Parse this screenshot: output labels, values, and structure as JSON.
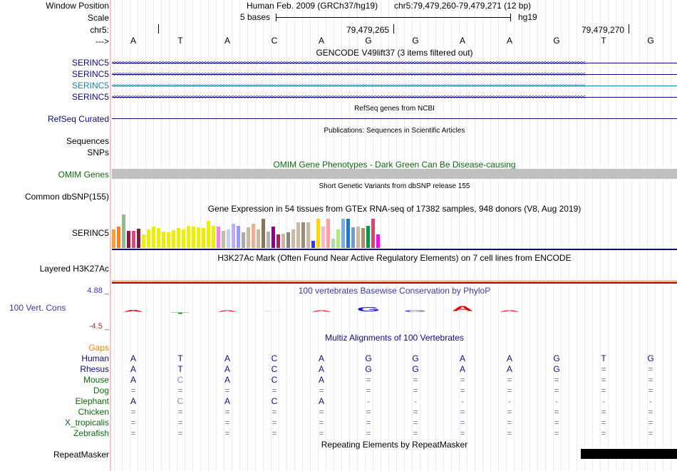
{
  "header": {
    "window_position_label": "Window Position",
    "assembly": "Human Feb. 2009 (GRCh37/hg19)",
    "position": "chr5:79,479,260-79,479,271 (12 bp)",
    "scale_label": "Scale",
    "scale_text": "5 bases",
    "scale_db": "hg19",
    "chrom_label": "chr5:",
    "coord_1": "79,479,265",
    "coord_2": "79,479,270",
    "strand_label": "--->"
  },
  "bases": [
    "A",
    "T",
    "A",
    "C",
    "A",
    "G",
    "G",
    "A",
    "A",
    "G",
    "T",
    "G"
  ],
  "gencode": {
    "title": "GENCODE V49lift37 (3 items filtered out)",
    "rows": [
      {
        "label": "SERINC5",
        "color": "#0c0c78"
      },
      {
        "label": "SERINC5",
        "color": "#0c0c78"
      },
      {
        "label": "SERINC5",
        "color": "#1c7fa8"
      },
      {
        "label": "SERINC5",
        "color": "#0c0c78"
      }
    ],
    "chevrons": "<<<<<<<<<<<<<<<<<<<<<<<<<<<<<<<<<<<<<<<<<<<<<<<<<<<<<<<<<<<<<<<<<<<<<<<<<<<<<<<<<<<<<<<<<<<<<<<<<<<<<<<<<<<<<<<<<<<<<<<<<<<<<<<<<<<<<<<<<<<<<<<<<<<<<<<<<<<<"
  },
  "refseq": {
    "title": "RefSeq genes from NCBI",
    "label": "RefSeq Curated"
  },
  "publications": {
    "title": "Publications: Sequences in Scientific Articles",
    "label_1": "Sequences",
    "label_2": "SNPs"
  },
  "omim": {
    "title": "OMIM Gene Phenotypes - Dark Green Can Be Disease-causing",
    "label": "OMIM Genes",
    "bar_color": "#c0c0c0"
  },
  "dbsnp": {
    "title": "Short Genetic Variants from dbSNP release 155",
    "label": "Common dbSNP(155)"
  },
  "gtex": {
    "title": "Gene Expression in 54 tissues from GTEx RNA-seq of 17382 samples, 948 donors (V8, Aug 2019)",
    "label": "SERINC5",
    "bars": [
      {
        "value": 0.55,
        "color": "#ff9f33"
      },
      {
        "value": 0.63,
        "color": "#ff7f1f"
      },
      {
        "value": 0.98,
        "color": "#8fbc8f"
      },
      {
        "value": 0.5,
        "color": "#8b1a4b"
      },
      {
        "value": 0.5,
        "color": "#e0457b"
      },
      {
        "value": 0.56,
        "color": "#7a1e3f"
      },
      {
        "value": 0.4,
        "color": "#eeee00"
      },
      {
        "value": 0.55,
        "color": "#eeee00"
      },
      {
        "value": 0.62,
        "color": "#eeee00"
      },
      {
        "value": 0.58,
        "color": "#eeee00"
      },
      {
        "value": 0.48,
        "color": "#eeee00"
      },
      {
        "value": 0.46,
        "color": "#eeee00"
      },
      {
        "value": 0.52,
        "color": "#eeee00"
      },
      {
        "value": 0.58,
        "color": "#eeee00"
      },
      {
        "value": 0.55,
        "color": "#eeee00"
      },
      {
        "value": 0.65,
        "color": "#eeee00"
      },
      {
        "value": 0.62,
        "color": "#eeee00"
      },
      {
        "value": 0.6,
        "color": "#eeee00"
      },
      {
        "value": 0.58,
        "color": "#eeee00"
      },
      {
        "value": 0.8,
        "color": "#eeee00"
      },
      {
        "value": 0.65,
        "color": "#eeee00"
      },
      {
        "value": 0.62,
        "color": "#ee82ee"
      },
      {
        "value": 0.5,
        "color": "#cdb79e"
      },
      {
        "value": 0.55,
        "color": "#bcd2ee"
      },
      {
        "value": 0.7,
        "color": "#bfaaff"
      },
      {
        "value": 0.65,
        "color": "#9999ff"
      },
      {
        "value": 0.45,
        "color": "#aaaaaa"
      },
      {
        "value": 0.6,
        "color": "#cdb79e"
      },
      {
        "value": 0.7,
        "color": "#eeb08a"
      },
      {
        "value": 0.55,
        "color": "#cdb79e"
      },
      {
        "value": 0.85,
        "color": "#8b7355"
      },
      {
        "value": 0.48,
        "color": "#b4b4b4"
      },
      {
        "value": 0.62,
        "color": "#8b008b"
      },
      {
        "value": 0.4,
        "color": "#a02060"
      },
      {
        "value": 0.42,
        "color": "#cdb79e"
      },
      {
        "value": 0.45,
        "color": "#8b8682"
      },
      {
        "value": 0.55,
        "color": "#cdb79e"
      },
      {
        "value": 0.75,
        "color": "#cdb79e"
      },
      {
        "value": 0.74,
        "color": "#9c8b78"
      },
      {
        "value": 0.76,
        "color": "#cdb79e"
      },
      {
        "value": 0.2,
        "color": "#3a3ae0"
      },
      {
        "value": 0.85,
        "color": "#ffd700"
      },
      {
        "value": 0.62,
        "color": "#ffb6c1"
      },
      {
        "value": 0.85,
        "color": "#ffa0a0"
      },
      {
        "value": 0.28,
        "color": "#aaddaa"
      },
      {
        "value": 0.55,
        "color": "#aaee77"
      },
      {
        "value": 0.85,
        "color": "#77aaee"
      },
      {
        "value": 0.85,
        "color": "#2277cc"
      },
      {
        "value": 0.6,
        "color": "#7799cc"
      },
      {
        "value": 0.62,
        "color": "#cdb79e"
      },
      {
        "value": 0.58,
        "color": "#b48a6e"
      },
      {
        "value": 0.65,
        "color": "#009b4c"
      },
      {
        "value": 0.85,
        "color": "#dd4466"
      },
      {
        "value": 0.4,
        "color": "#ff00ff"
      }
    ]
  },
  "h3k27ac": {
    "title": "H3K27Ac Mark (Often Found Near Active Regulatory Elements) on 7 cell lines from ENCODE",
    "label": "Layered H3K27Ac"
  },
  "conservation": {
    "title": "100 vertebrates Basewise Conservation by PhyloP",
    "label": "100 Vert. Cons",
    "ymax": "4.88 _",
    "ymin": "-4.5 _",
    "axis_range": [
      -4.5,
      4.88
    ],
    "glyphs": [
      {
        "base": "A",
        "score": 0.55,
        "color": "#e00000"
      },
      {
        "base": "T",
        "score": -0.2,
        "color": "#00a000"
      },
      {
        "base": "A",
        "score": 0.25,
        "color": "#e00000"
      },
      {
        "base": "C",
        "score": 0.0,
        "color": "#e0e0e0"
      },
      {
        "base": "A",
        "score": 0.2,
        "color": "#e00000"
      },
      {
        "base": "G",
        "score": 1.0,
        "color": "#1a1ad0"
      },
      {
        "base": "G",
        "score": 0.15,
        "color": "#1a1ad0"
      },
      {
        "base": "A",
        "score": 1.3,
        "color": "#e00000"
      },
      {
        "base": "A",
        "score": 0.3,
        "color": "#e00000"
      }
    ]
  },
  "multiz": {
    "title": "Multiz Alignments of 100 Vertebrates",
    "gaps_label": "Gaps",
    "species": [
      {
        "name": "Human",
        "color": "#0c0c78",
        "seq": [
          "A",
          "T",
          "A",
          "C",
          "A",
          "G",
          "G",
          "A",
          "A",
          "G",
          "T",
          "G"
        ]
      },
      {
        "name": "Rhesus",
        "color": "#0c0c78",
        "seq": [
          "A",
          "T",
          "A",
          "C",
          "A",
          "G",
          "G",
          "A",
          "A",
          "G",
          "=",
          "="
        ]
      },
      {
        "name": "Mouse",
        "color": "#0b6b0b",
        "seq": [
          "A",
          "C",
          "A",
          "C",
          "A",
          "=",
          "=",
          "=",
          "=",
          "=",
          "=",
          "="
        ]
      },
      {
        "name": "Dog",
        "color": "#0b6b0b",
        "seq": [
          "=",
          "=",
          "=",
          "=",
          "=",
          "=",
          "=",
          "=",
          "=",
          "=",
          "=",
          "="
        ]
      },
      {
        "name": "Elephant",
        "color": "#0b6b0b",
        "seq": [
          "A",
          "C",
          "A",
          "C",
          "A",
          "-",
          "-",
          "-",
          "-",
          "-",
          "-",
          "-"
        ]
      },
      {
        "name": "Chicken",
        "color": "#0b6b0b",
        "seq": [
          "=",
          "=",
          "=",
          "=",
          "=",
          "=",
          "=",
          "=",
          "=",
          "=",
          "=",
          "="
        ]
      },
      {
        "name": "X_tropicalis",
        "color": "#0b6b0b",
        "seq": [
          "=",
          "=",
          "=",
          "=",
          "=",
          "=",
          "=",
          "=",
          "=",
          "=",
          "=",
          "="
        ]
      },
      {
        "name": "Zebrafish",
        "color": "#0b6b0b",
        "seq": [
          "=",
          "=",
          "=",
          "=",
          "=",
          "=",
          "=",
          "=",
          "=",
          "=",
          "=",
          "="
        ]
      }
    ]
  },
  "repeatmasker": {
    "title": "Repeating Elements by RepeatMasker",
    "label": "RepeatMasker",
    "block_start_fraction": 0.83
  }
}
